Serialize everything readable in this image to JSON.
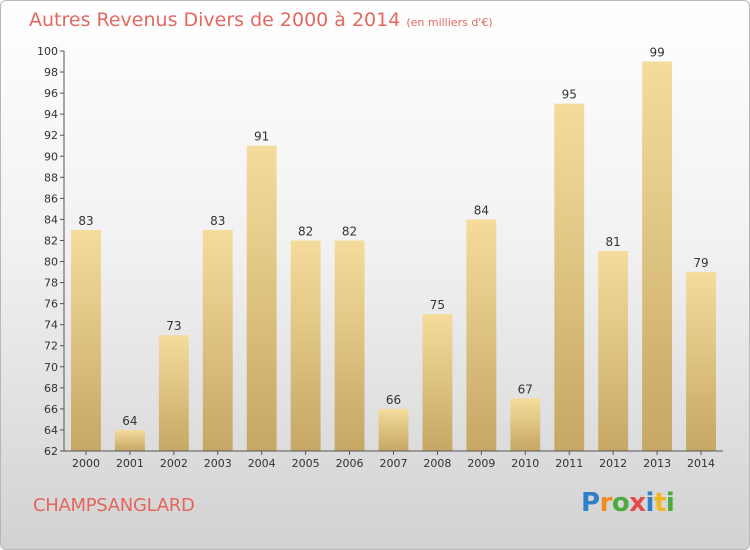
{
  "chart_data": {
    "type": "bar",
    "title": "Autres Revenus Divers de 2000 à 2014",
    "subtitle": "(en milliers d'€)",
    "categories": [
      "2000",
      "2001",
      "2002",
      "2003",
      "2004",
      "2005",
      "2006",
      "2007",
      "2008",
      "2009",
      "2010",
      "2011",
      "2012",
      "2013",
      "2014"
    ],
    "values": [
      83,
      64,
      73,
      83,
      91,
      82,
      82,
      66,
      75,
      84,
      67,
      95,
      81,
      99,
      79
    ],
    "ylim": [
      62,
      100
    ],
    "ytick_step": 2,
    "grid": false,
    "bar_color_top": "#f5dc9c",
    "bar_color_bottom": "#c6a764"
  },
  "place_name": "CHAMPSANGLARD",
  "logo": {
    "letters": [
      "P",
      "r",
      "o",
      "x",
      "i",
      "t",
      "i"
    ],
    "colors": [
      "#2f7fc9",
      "#f28a1e",
      "#4daa3f",
      "#e84a4a",
      "#2f7fc9",
      "#f2b51e",
      "#4daa3f"
    ]
  }
}
